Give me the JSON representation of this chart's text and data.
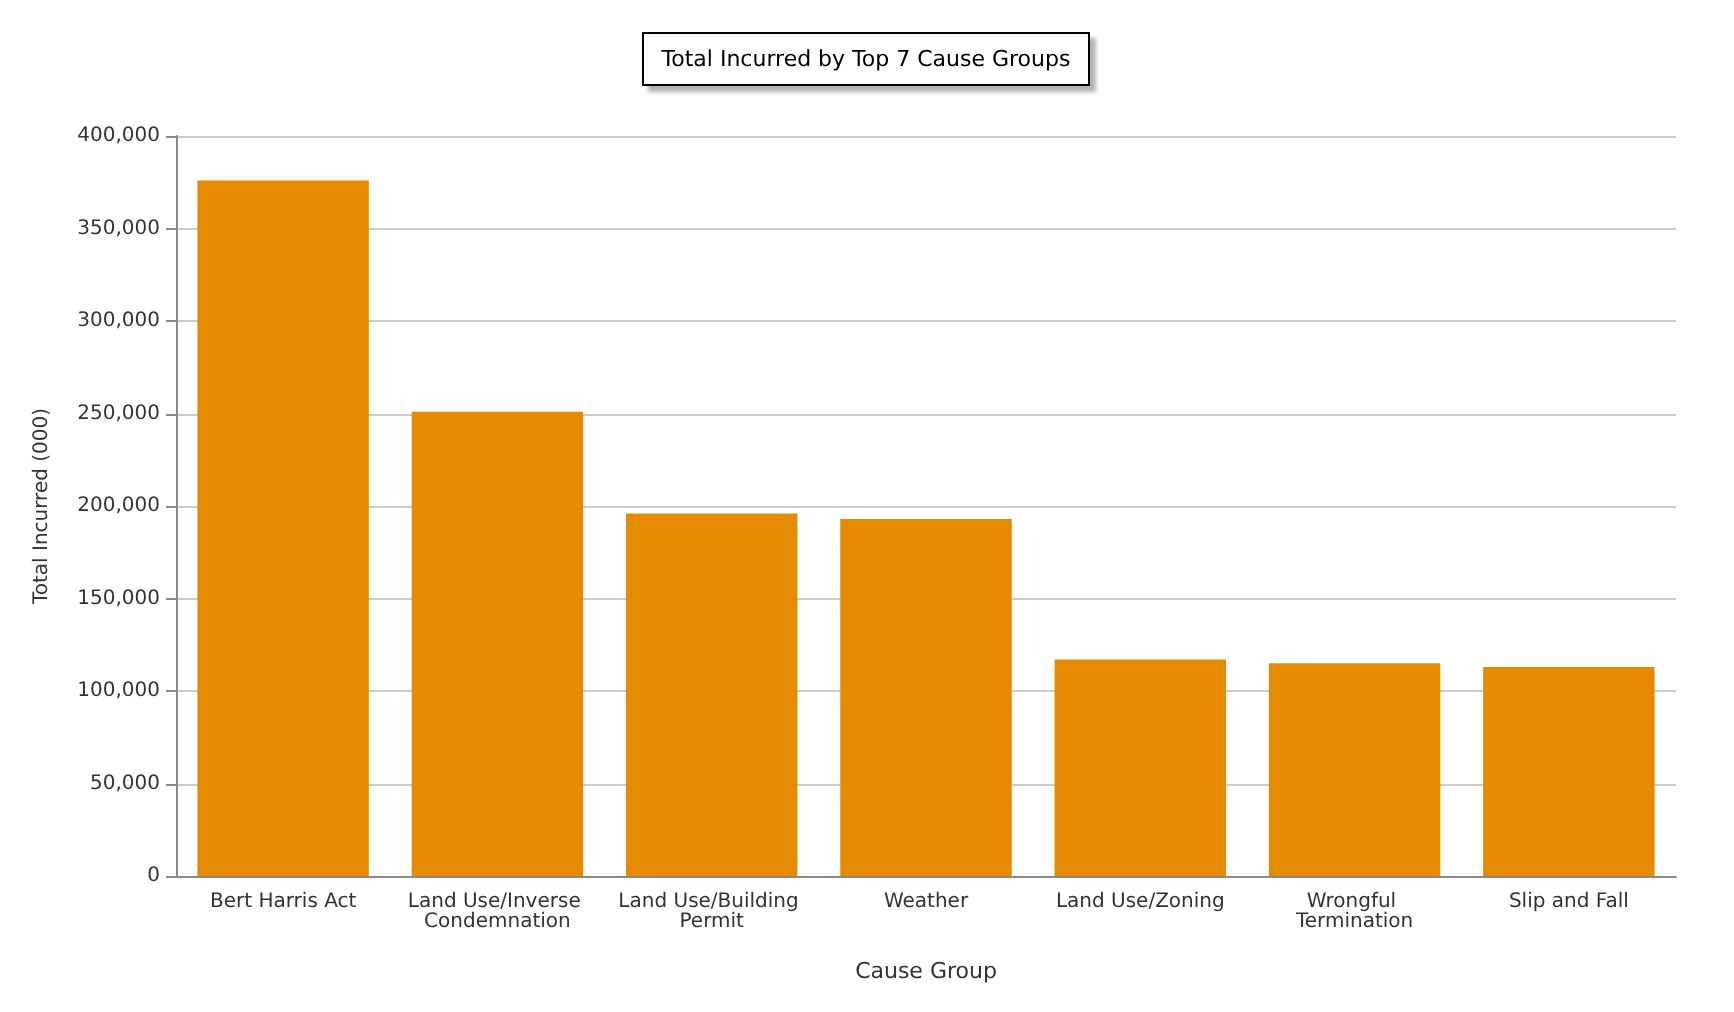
{
  "chart_data": {
    "type": "bar",
    "title": "Total Incurred by Top 7 Cause Groups",
    "xlabel": "Cause Group",
    "ylabel": "Total Incurred (000)",
    "categories": [
      "Bert Harris Act",
      "Land Use/Inverse Condemnation",
      "Land Use/Building Permit",
      "Weather",
      "Land Use/Zoning",
      "Wrongful Termination",
      "Slip and Fall"
    ],
    "values": [
      376000,
      251000,
      196000,
      193000,
      117000,
      115000,
      113000
    ],
    "color": "#e68a00",
    "ylim": [
      0,
      400000
    ],
    "yticks": [
      0,
      {
        "value": 50000,
        "label": "50,000"
      },
      {
        "value": 100000,
        "label": "100,000"
      },
      {
        "value": 150000,
        "label": "150,000"
      },
      {
        "value": 200000,
        "label": "200,000"
      },
      {
        "value": 250000,
        "label": "250,000"
      },
      {
        "value": 300000,
        "label": "300,000"
      },
      {
        "value": 350000,
        "label": "350,000"
      },
      {
        "value": 400000,
        "label": "400,000"
      }
    ],
    "grid": "y"
  }
}
